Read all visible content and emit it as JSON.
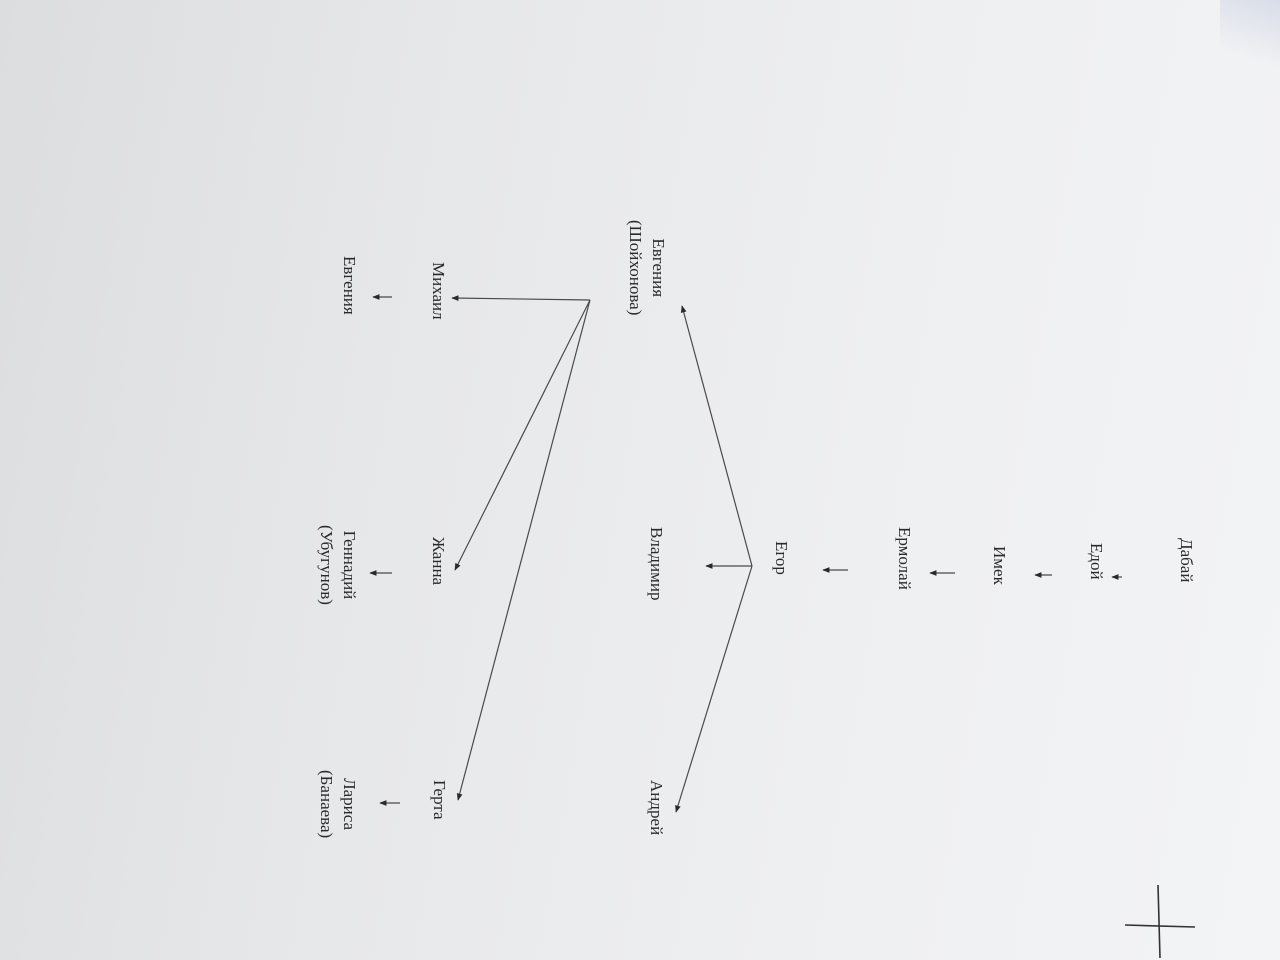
{
  "tree": {
    "nodes": {
      "dabai": {
        "lines": [
          "Дабай"
        ]
      },
      "edoi": {
        "lines": [
          "Едой"
        ]
      },
      "imek": {
        "lines": [
          "Имек"
        ]
      },
      "ermolai": {
        "lines": [
          "Ермолай"
        ]
      },
      "egor": {
        "lines": [
          "Егор"
        ]
      },
      "vladimir": {
        "lines": [
          "Владимир"
        ]
      },
      "andrei": {
        "lines": [
          "Андрей"
        ]
      },
      "evgeniya_mother": {
        "lines": [
          "Евгения",
          "(Шойхонова)"
        ]
      },
      "mikhail": {
        "lines": [
          "Михаил"
        ]
      },
      "zhanna": {
        "lines": [
          "Жанна"
        ]
      },
      "gerta": {
        "lines": [
          "Герта"
        ]
      },
      "evgeniya": {
        "lines": [
          "Евгения"
        ]
      },
      "gennadii": {
        "lines": [
          "Геннадий",
          "(Убугунов)"
        ]
      },
      "larisa": {
        "lines": [
          "Лариса",
          "(Банаева)"
        ]
      }
    },
    "edges": [
      [
        "dabai",
        "edoi"
      ],
      [
        "edoi",
        "imek"
      ],
      [
        "imek",
        "ermolai"
      ],
      [
        "ermolai",
        "egor"
      ],
      [
        "egor",
        "evgeniya_mother"
      ],
      [
        "egor",
        "vladimir"
      ],
      [
        "egor",
        "andrei"
      ],
      [
        "evgeniya_mother",
        "mikhail"
      ],
      [
        "evgeniya_mother",
        "zhanna"
      ],
      [
        "evgeniya_mother",
        "gerta"
      ],
      [
        "mikhail",
        "evgeniya"
      ],
      [
        "zhanna",
        "gennadii"
      ],
      [
        "gerta",
        "larisa"
      ]
    ]
  }
}
